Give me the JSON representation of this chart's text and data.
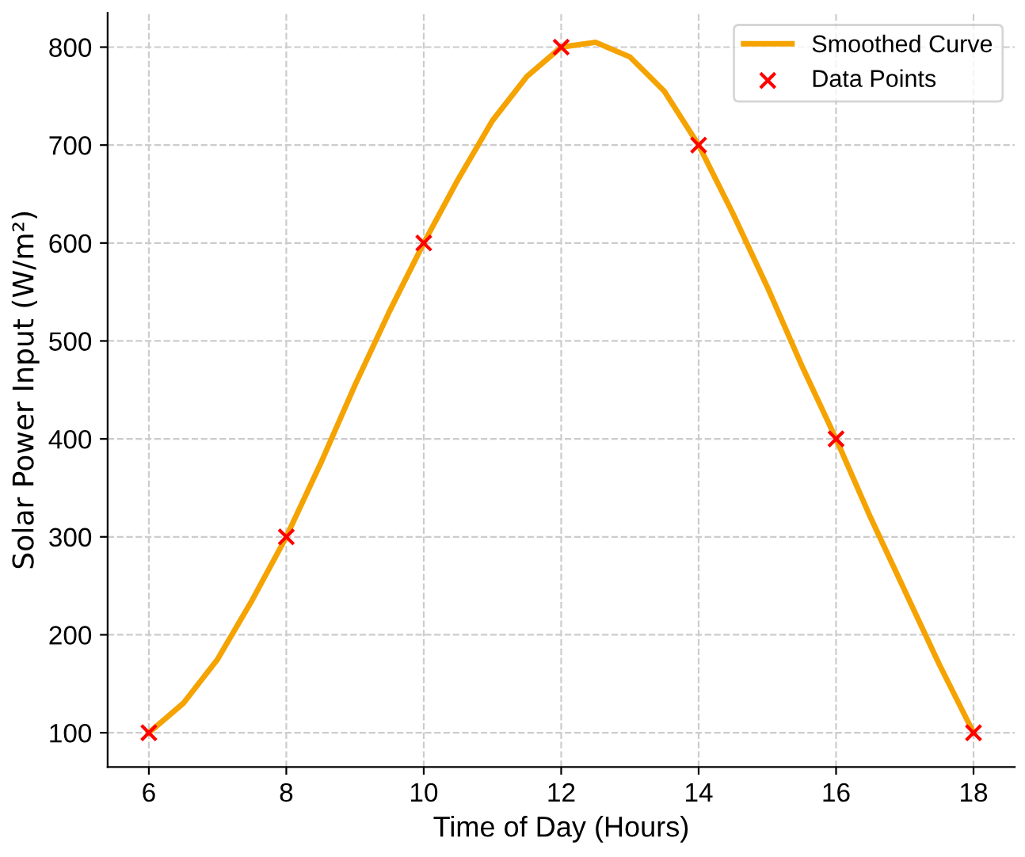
{
  "chart_data": {
    "type": "line",
    "xlabel": "Time of Day (Hours)",
    "ylabel": "Solar Power Input (W/m²)",
    "xlim": [
      5.4,
      18.6
    ],
    "ylim": [
      65,
      835
    ],
    "xticks": [
      6,
      8,
      10,
      12,
      14,
      16,
      18
    ],
    "yticks": [
      100,
      200,
      300,
      400,
      500,
      600,
      700,
      800
    ],
    "grid": true,
    "legend": "top right",
    "series": [
      {
        "name": "Smoothed Curve",
        "color": "#f5a300",
        "marker": "none",
        "line_style": "solid",
        "x": [
          6,
          6.5,
          7,
          7.5,
          8,
          8.5,
          9,
          9.5,
          10,
          10.5,
          11,
          11.5,
          12,
          12.5,
          13,
          13.5,
          14,
          14.5,
          15,
          15.5,
          16,
          16.5,
          17,
          17.5,
          18
        ],
        "values": [
          100,
          130,
          175,
          235,
          300,
          375,
          455,
          530,
          600,
          665,
          725,
          770,
          800,
          805,
          790,
          755,
          700,
          630,
          555,
          475,
          400,
          320,
          245,
          170,
          100
        ]
      },
      {
        "name": "Data Points",
        "type": "scatter",
        "color": "#ff0000",
        "marker": "cross",
        "x": [
          6,
          8,
          10,
          12,
          14,
          16,
          18
        ],
        "values": [
          100,
          300,
          600,
          800,
          700,
          400,
          100
        ]
      }
    ]
  }
}
